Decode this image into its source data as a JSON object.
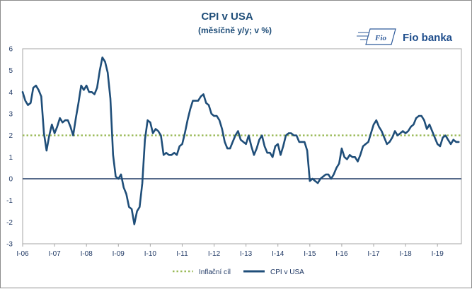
{
  "chart_data": {
    "type": "line",
    "title": "CPI v USA",
    "subtitle": "(měsíčně y/y; v %)",
    "ylim": [
      -3,
      6
    ],
    "yticks": [
      -3,
      -2,
      -1,
      0,
      1,
      2,
      3,
      4,
      5,
      6
    ],
    "xlim": [
      0,
      165
    ],
    "xticks": [
      {
        "label": "I-06",
        "x": 0
      },
      {
        "label": "I-07",
        "x": 12
      },
      {
        "label": "I-08",
        "x": 24
      },
      {
        "label": "I-09",
        "x": 36
      },
      {
        "label": "I-10",
        "x": 48
      },
      {
        "label": "I-11",
        "x": 60
      },
      {
        "label": "I-12",
        "x": 72
      },
      {
        "label": "I-13",
        "x": 84
      },
      {
        "label": "I-14",
        "x": 96
      },
      {
        "label": "I-15",
        "x": 108
      },
      {
        "label": "I-16",
        "x": 120
      },
      {
        "label": "I-17",
        "x": 132
      },
      {
        "label": "I-18",
        "x": 144
      },
      {
        "label": "I-19",
        "x": 156
      }
    ],
    "grid": false,
    "legend_position": "bottom",
    "series": [
      {
        "name": "Inflační cíl",
        "style": "dotted",
        "color": "#9bbb59",
        "constant": 2.0
      },
      {
        "name": "CPI v USA",
        "style": "solid",
        "color": "#1f4e79",
        "values": [
          4.0,
          3.6,
          3.4,
          3.5,
          4.2,
          4.3,
          4.1,
          3.8,
          2.1,
          1.3,
          2.0,
          2.5,
          2.1,
          2.4,
          2.8,
          2.6,
          2.7,
          2.7,
          2.4,
          2.0,
          2.8,
          3.5,
          4.3,
          4.1,
          4.3,
          4.0,
          4.0,
          3.9,
          4.2,
          5.0,
          5.6,
          5.4,
          4.9,
          3.7,
          1.1,
          0.1,
          0.0,
          0.2,
          -0.4,
          -0.7,
          -1.3,
          -1.4,
          -2.1,
          -1.5,
          -1.3,
          -0.2,
          1.8,
          2.7,
          2.6,
          2.1,
          2.3,
          2.2,
          2.0,
          1.1,
          1.2,
          1.1,
          1.1,
          1.2,
          1.1,
          1.5,
          1.6,
          2.1,
          2.7,
          3.2,
          3.6,
          3.6,
          3.6,
          3.8,
          3.9,
          3.5,
          3.4,
          3.0,
          2.9,
          2.9,
          2.7,
          2.3,
          1.7,
          1.4,
          1.4,
          1.7,
          2.0,
          2.2,
          1.8,
          1.7,
          1.6,
          2.0,
          1.5,
          1.1,
          1.4,
          1.8,
          2.0,
          1.5,
          1.2,
          1.2,
          1.0,
          1.5,
          1.6,
          1.1,
          1.5,
          2.0,
          2.1,
          2.1,
          2.0,
          2.0,
          1.7,
          1.7,
          1.7,
          1.3,
          -0.1,
          0.0,
          -0.1,
          -0.2,
          0.0,
          0.1,
          0.2,
          0.2,
          0.0,
          0.2,
          0.5,
          0.7,
          1.4,
          1.0,
          0.9,
          1.1,
          1.0,
          1.0,
          0.8,
          1.1,
          1.5,
          1.6,
          1.7,
          2.1,
          2.5,
          2.7,
          2.4,
          2.2,
          1.9,
          1.6,
          1.7,
          1.9,
          2.2,
          2.0,
          2.1,
          2.2,
          2.1,
          2.2,
          2.4,
          2.5,
          2.8,
          2.9,
          2.9,
          2.7,
          2.3,
          2.5,
          2.2,
          1.9,
          1.6,
          1.5,
          1.9,
          2.0,
          1.8,
          1.6,
          1.8,
          1.7,
          1.7
        ]
      }
    ]
  },
  "logo": {
    "mark_text": "Fio",
    "brand_text": "Fio banka"
  }
}
